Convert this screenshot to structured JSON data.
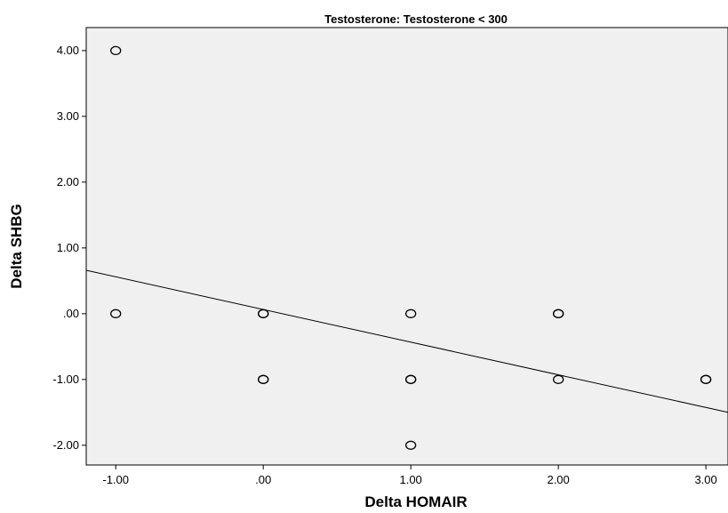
{
  "chart_data": {
    "type": "scatter",
    "title": "Testosterone: Testosterone < 300",
    "xlabel": "Delta HOMAIR",
    "ylabel": "Delta SHBG",
    "xlim": [
      -1.2,
      3.15
    ],
    "ylim": [
      -2.3,
      4.35
    ],
    "x_ticks": [
      -1,
      0,
      1,
      2,
      3
    ],
    "x_tick_labels": [
      "-1.00",
      ".00",
      "1.00",
      "2.00",
      "3.00"
    ],
    "y_ticks": [
      -2,
      -1,
      0,
      1,
      2,
      3,
      4
    ],
    "y_tick_labels": [
      "-2.00",
      "-1.00",
      ".00",
      "1.00",
      "2.00",
      "3.00",
      "4.00"
    ],
    "grid": false,
    "points": [
      {
        "x": -1,
        "y": 4
      },
      {
        "x": -1,
        "y": 0
      },
      {
        "x": 0,
        "y": 0
      },
      {
        "x": 0,
        "y": 0
      },
      {
        "x": 0,
        "y": -1
      },
      {
        "x": 0,
        "y": -1
      },
      {
        "x": 1,
        "y": 0
      },
      {
        "x": 1,
        "y": -1
      },
      {
        "x": 1,
        "y": -1
      },
      {
        "x": 1,
        "y": -2
      },
      {
        "x": 2,
        "y": 0
      },
      {
        "x": 2,
        "y": 0
      },
      {
        "x": 2,
        "y": -1
      },
      {
        "x": 3,
        "y": -1
      },
      {
        "x": 3,
        "y": -1
      }
    ],
    "fit_line": {
      "x1": -1.2,
      "y1": 0.66,
      "x2": 3.15,
      "y2": -1.5
    },
    "colors": {
      "plot_background": "#f0f0f0",
      "marker": "#000000",
      "line": "#000000"
    }
  }
}
